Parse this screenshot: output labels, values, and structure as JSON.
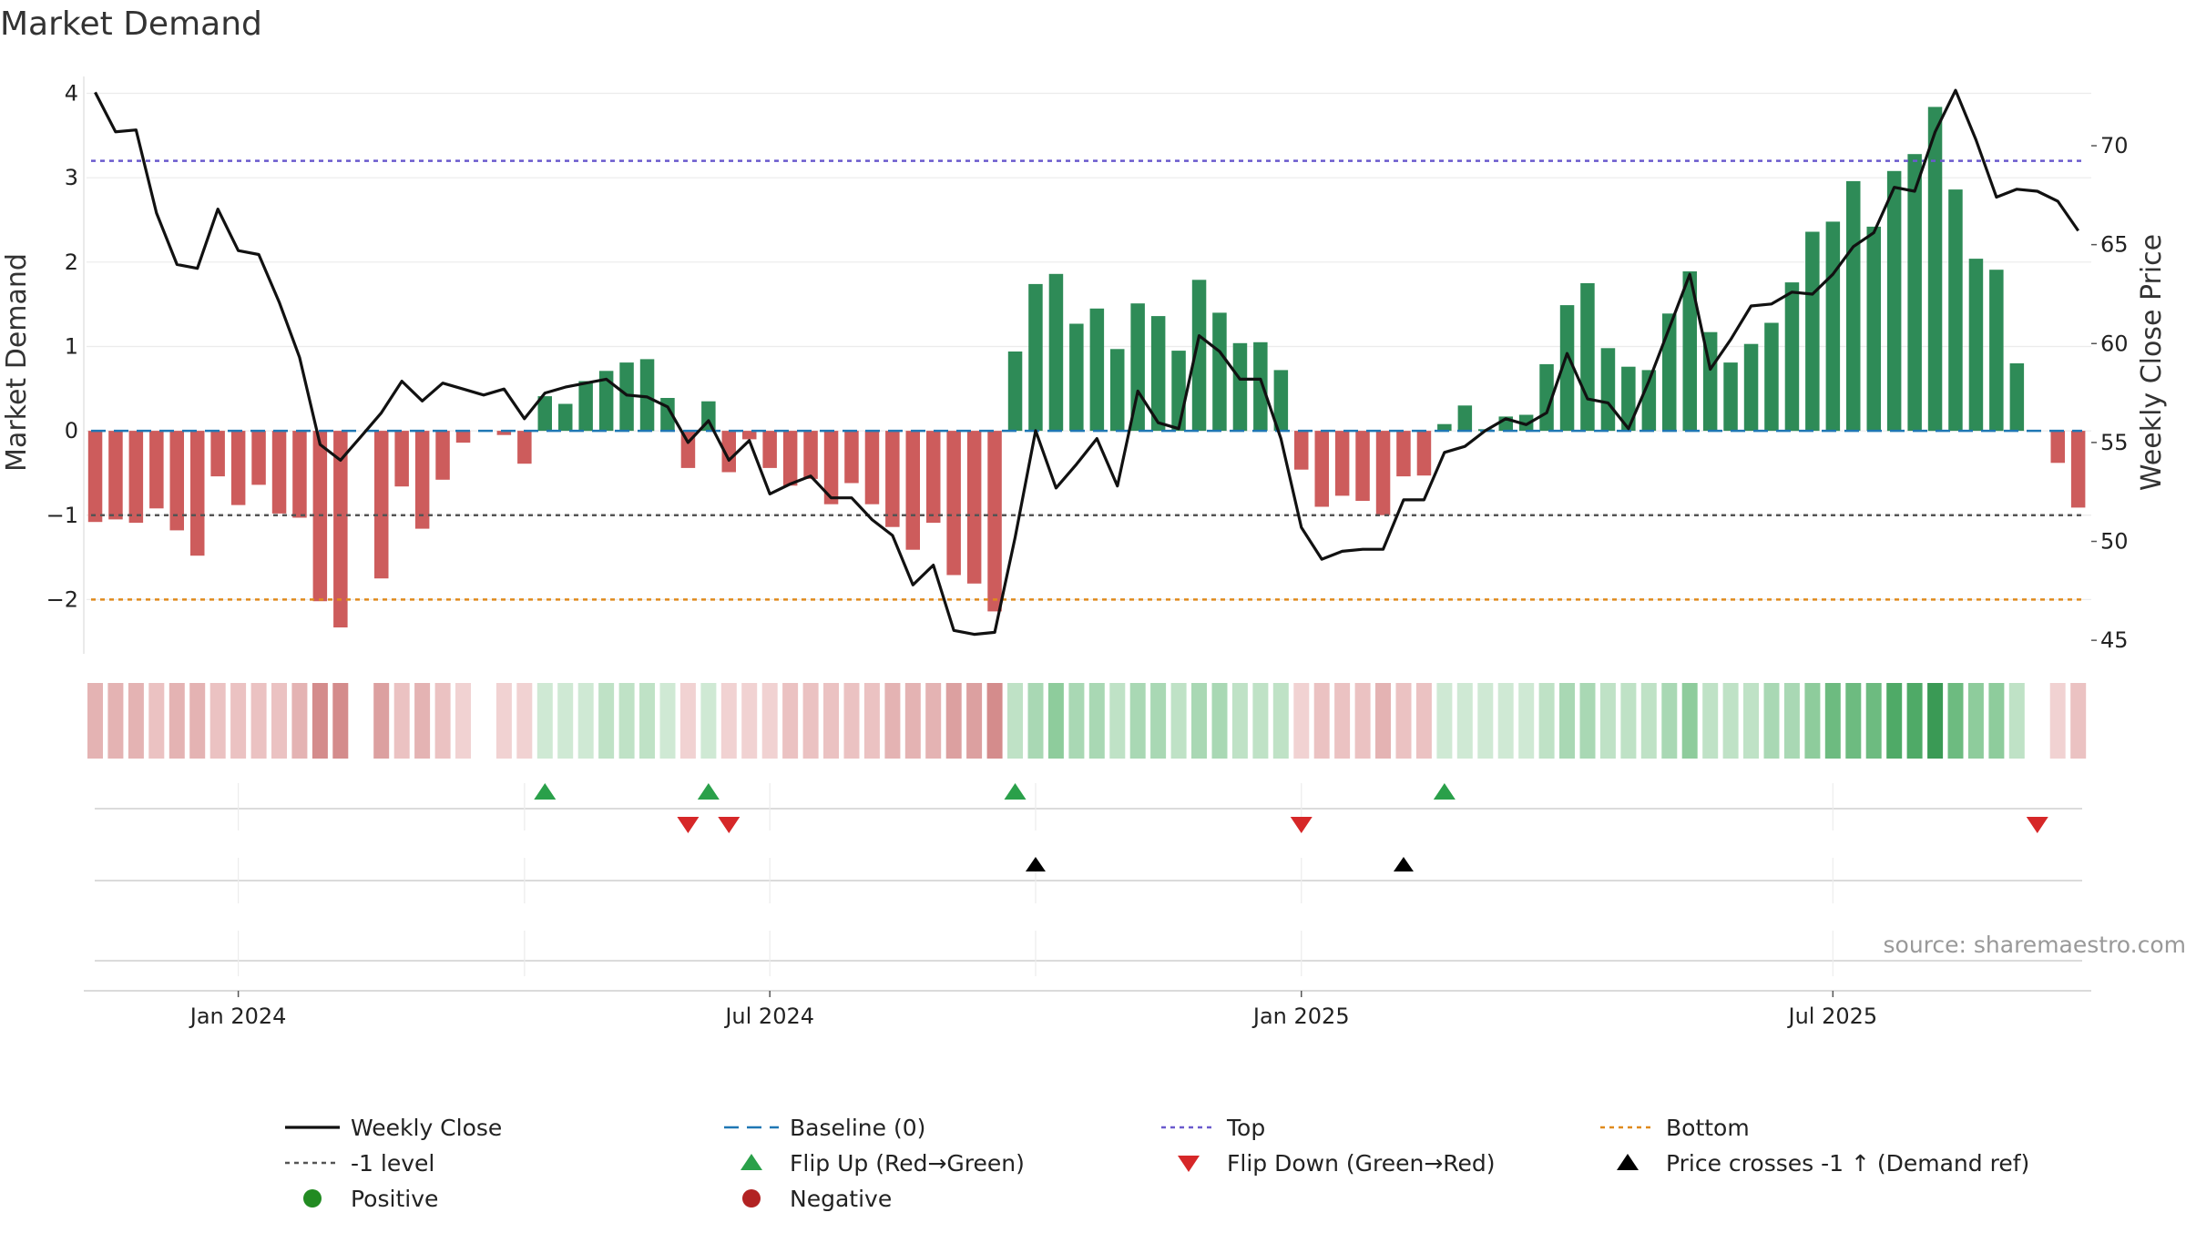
{
  "chart_data": {
    "type": "bar",
    "title": "Market Demand",
    "ylabel_left": "Market Demand",
    "ylabel_right": "Weekly Close Price",
    "ylim_left": [
      -2.6,
      4.2
    ],
    "ylim_right": [
      44.5,
      73.5
    ],
    "yticks_left": [
      4,
      3,
      2,
      1,
      0,
      -1,
      -2
    ],
    "ytick_labels_left": [
      "4",
      "3",
      "2",
      "1",
      "0",
      "−1",
      "−2"
    ],
    "yticks_right": [
      70,
      65,
      60,
      55,
      50,
      45
    ],
    "ytick_labels_right": [
      "70",
      "65",
      "60",
      "55",
      "50",
      "45"
    ],
    "date_labels": [
      "Jan 2024",
      "Jul 2024",
      "Jan 2025",
      "Jul 2025"
    ],
    "date_label_weeks": [
      7,
      33,
      59,
      85
    ],
    "reference_lines": {
      "baseline": 0,
      "top": 3.2,
      "bottom": -2.0,
      "minus_one": -1.0
    },
    "demand": [
      -1.08,
      -1.05,
      -1.09,
      -0.92,
      -1.18,
      -1.48,
      -0.54,
      -0.88,
      -0.64,
      -0.98,
      -1.03,
      -2.02,
      -2.33,
      0,
      -1.75,
      -0.66,
      -1.16,
      -0.58,
      -0.14,
      0,
      -0.05,
      -0.39,
      0.41,
      0.32,
      0.59,
      0.71,
      0.81,
      0.85,
      0.39,
      -0.44,
      0.35,
      -0.49,
      -0.1,
      -0.44,
      -0.65,
      -0.57,
      -0.87,
      -0.62,
      -0.87,
      -1.14,
      -1.41,
      -1.09,
      -1.71,
      -1.81,
      -2.14,
      0.94,
      1.74,
      1.86,
      1.27,
      1.45,
      0.97,
      1.51,
      1.36,
      0.95,
      1.79,
      1.4,
      1.04,
      1.05,
      0.72,
      -0.46,
      -0.9,
      -0.77,
      -0.83,
      -1.0,
      -0.54,
      -0.53,
      0.08,
      0.3,
      0.02,
      0.17,
      0.19,
      0.79,
      1.49,
      1.75,
      0.98,
      0.76,
      0.72,
      1.39,
      1.89,
      1.17,
      0.81,
      1.03,
      1.28,
      1.76,
      2.36,
      2.48,
      2.96,
      2.42,
      3.08,
      3.28,
      3.84,
      2.86,
      2.04,
      1.91,
      0.8,
      0,
      -0.38,
      -0.91
    ],
    "weekly_close": [
      72.7,
      70.7,
      70.8,
      66.6,
      64.0,
      63.8,
      66.8,
      64.7,
      64.5,
      62.1,
      59.3,
      54.9,
      54.1,
      55.3,
      56.5,
      58.1,
      57.1,
      58.0,
      57.7,
      57.4,
      57.7,
      56.2,
      57.5,
      57.8,
      58.0,
      58.2,
      57.4,
      57.3,
      56.8,
      55.0,
      56.1,
      54.1,
      55.1,
      52.4,
      52.9,
      53.3,
      52.2,
      52.2,
      51.1,
      50.3,
      47.8,
      48.8,
      45.5,
      45.3,
      45.4,
      50.2,
      55.6,
      52.7,
      53.9,
      55.2,
      52.8,
      57.6,
      56.0,
      55.7,
      60.4,
      59.6,
      58.2,
      58.2,
      55.2,
      50.7,
      49.1,
      49.5,
      49.6,
      49.6,
      52.1,
      52.1,
      54.5,
      54.8,
      55.6,
      56.2,
      55.9,
      56.5,
      59.5,
      57.2,
      57.0,
      55.7,
      58.1,
      60.8,
      63.5,
      58.7,
      60.2,
      61.9,
      62.0,
      62.6,
      62.5,
      63.5,
      64.9,
      65.6,
      67.9,
      67.7,
      70.7,
      72.8,
      70.3,
      67.4,
      67.8,
      67.7,
      67.2,
      65.7
    ],
    "flip_up_weeks": [
      22,
      30,
      45,
      66
    ],
    "flip_down_weeks": [
      29,
      31,
      59,
      95
    ],
    "price_cross_weeks": [
      46,
      64
    ],
    "legend": [
      "Weekly Close",
      "Baseline (0)",
      "Top",
      "Bottom",
      "-1 level",
      "Flip Up (Red→Green)",
      "Flip Down (Green→Red)",
      "Price crosses -1 ↑ (Demand ref)",
      "Positive",
      "Negative"
    ],
    "source": "source: sharemaestro.com"
  },
  "colors": {
    "positive_bar": "#2e8b57",
    "negative_bar": "#cd5c5c",
    "close_line": "#111111",
    "baseline": "#1f77b4",
    "top": "#6a5acd",
    "bottom": "#e08a1c",
    "minus_one": "#555555",
    "flip_up": "#2aa04a",
    "flip_down": "#d62728",
    "cross": "#000000",
    "legend_positive": "#228b22",
    "legend_negative": "#b22222"
  }
}
